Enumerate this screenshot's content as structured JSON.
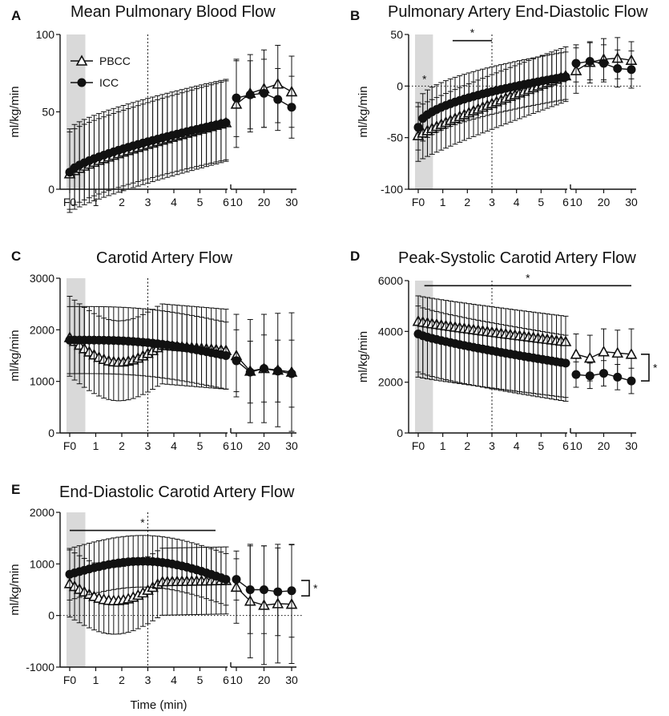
{
  "figure": {
    "x_axis_label": "Time (min)",
    "colors": {
      "ink": "#111111",
      "shade": "#d9d9d9",
      "pbcc_fill": "#ffffff",
      "icc_fill": "#111111"
    }
  },
  "chart_data": [
    {
      "id": "A",
      "type": "line",
      "title": "Mean Pulmonary Blood Flow",
      "ylabel": "ml/kg/min",
      "xlabel": "",
      "ylim": [
        0,
        100
      ],
      "yticks": [
        0,
        50,
        100
      ],
      "ytick_labels": [
        "0",
        "50",
        "100"
      ],
      "x_left_ticks": [
        "F0",
        "1",
        "2",
        "3",
        "4",
        "5",
        "6"
      ],
      "x_right_ticks": [
        "10",
        "20",
        "30"
      ],
      "shade_minutes": [
        0,
        0.6
      ],
      "dotted_line_minute": 3,
      "zero_line": false,
      "legend": {
        "position": "top-left",
        "entries": [
          "PBCC",
          "ICC"
        ]
      },
      "series": [
        {
          "name": "PBCC",
          "marker": "open-triangle",
          "left": {
            "start": 10,
            "end": 43,
            "shape": 0.8,
            "err_up": 27,
            "err_down": 25
          },
          "right": {
            "x": [
              10,
              15,
              20,
              25,
              30
            ],
            "y": [
              55,
              62,
              65,
              68,
              63
            ],
            "err": [
              28,
              25,
              25,
              25,
              23
            ]
          }
        },
        {
          "name": "ICC",
          "marker": "filled-circle",
          "left": {
            "start": 11,
            "end": 43,
            "shape": 0.7,
            "err_up": 28,
            "err_down": 24
          },
          "right": {
            "x": [
              10,
              15,
              20,
              25,
              30
            ],
            "y": [
              59,
              61,
              62,
              58,
              53
            ],
            "err": [
              25,
              22,
              22,
              20,
              20
            ]
          }
        }
      ],
      "annotations": []
    },
    {
      "id": "B",
      "type": "line",
      "title": "Pulmonary Artery End-Diastolic Flow",
      "ylabel": "ml/kg/min",
      "xlabel": "",
      "ylim": [
        -100,
        50
      ],
      "yticks": [
        -100,
        -50,
        0,
        50
      ],
      "ytick_labels": [
        "-100",
        "-50",
        "0",
        "50"
      ],
      "x_left_ticks": [
        "F0",
        "1",
        "2",
        "3",
        "4",
        "5",
        "6"
      ],
      "x_right_ticks": [
        "10",
        "20",
        "30"
      ],
      "shade_minutes": [
        0,
        0.6
      ],
      "dotted_line_minute": 3,
      "zero_line": true,
      "legend": null,
      "series": [
        {
          "name": "PBCC",
          "marker": "open-triangle",
          "left": {
            "start": -48,
            "end": 10,
            "shape": 0.9,
            "err_up": 28,
            "err_down": 25
          },
          "right": {
            "x": [
              10,
              15,
              20,
              25,
              30
            ],
            "y": [
              15,
              23,
              26,
              27,
              25
            ],
            "err": [
              22,
              20,
              20,
              20,
              18
            ]
          }
        },
        {
          "name": "ICC",
          "marker": "filled-circle",
          "left": {
            "start": -40,
            "end": 9,
            "shape": 0.5,
            "err_up": 24,
            "err_down": 22
          },
          "right": {
            "x": [
              10,
              15,
              20,
              25,
              30
            ],
            "y": [
              22,
              24,
              22,
              17,
              16
            ],
            "err": [
              18,
              18,
              18,
              18,
              18
            ]
          }
        }
      ],
      "annotations": [
        {
          "type": "star",
          "text": "*",
          "minute": 0.25,
          "y": 3
        },
        {
          "type": "bracket-h",
          "text": "*",
          "from_minute": 1.4,
          "to_minute": 3,
          "y": 44
        }
      ]
    },
    {
      "id": "C",
      "type": "line",
      "title": "Carotid Artery Flow",
      "ylabel": "ml/kg/min",
      "xlabel": "",
      "ylim": [
        0,
        3000
      ],
      "yticks": [
        0,
        1000,
        2000,
        3000
      ],
      "ytick_labels": [
        "0",
        "1000",
        "2000",
        "3000"
      ],
      "x_left_ticks": [
        "F0",
        "1",
        "2",
        "3",
        "4",
        "5",
        "6"
      ],
      "x_right_ticks": [
        "10",
        "20",
        "30"
      ],
      "shade_minutes": [
        0,
        0.6
      ],
      "dotted_line_minute": 3,
      "zero_line": false,
      "legend": null,
      "series": [
        {
          "name": "PBCC",
          "marker": "open-triangle",
          "left": {
            "start": 1850,
            "end": 1600,
            "dip": 400,
            "shape": 1.0,
            "err_up": 800,
            "err_down": 750
          },
          "right": {
            "x": [
              10,
              15,
              20,
              25,
              30
            ],
            "y": [
              1500,
              1200,
              1250,
              1220,
              1180
            ],
            "err": [
              800,
              1000,
              1050,
              1100,
              1150
            ]
          }
        },
        {
          "name": "ICC",
          "marker": "filled-circle",
          "left": {
            "start": 1800,
            "end": 1500,
            "bump": 100,
            "shape": 1.0,
            "err_up": 650,
            "err_down": 650
          },
          "right": {
            "x": [
              10,
              15,
              20,
              25,
              30
            ],
            "y": [
              1400,
              1180,
              1250,
              1200,
              1150
            ],
            "err": [
              600,
              600,
              650,
              600,
              650
            ]
          }
        }
      ],
      "annotations": []
    },
    {
      "id": "D",
      "type": "line",
      "title": "Peak-Systolic Carotid Artery Flow",
      "ylabel": "ml/kg/min",
      "xlabel": "",
      "ylim": [
        0,
        6000
      ],
      "yticks": [
        0,
        2000,
        4000,
        6000
      ],
      "ytick_labels": [
        "0",
        "2000",
        "4000",
        "6000"
      ],
      "x_left_ticks": [
        "F0",
        "1",
        "2",
        "3",
        "4",
        "5",
        "6"
      ],
      "x_right_ticks": [
        "10",
        "20",
        "30"
      ],
      "shade_minutes": [
        0,
        0.6
      ],
      "dotted_line_minute": 3,
      "zero_line": false,
      "legend": null,
      "series": [
        {
          "name": "PBCC",
          "marker": "open-triangle",
          "left": {
            "start": 4400,
            "end": 3600,
            "shape": 0.9,
            "err_up": 1000,
            "err_down": 2200
          },
          "right": {
            "x": [
              10,
              15,
              20,
              25,
              30
            ],
            "y": [
              3100,
              2950,
              3200,
              3150,
              3100
            ],
            "err": [
              800,
              900,
              900,
              900,
              1000
            ]
          }
        },
        {
          "name": "ICC",
          "marker": "filled-circle",
          "left": {
            "start": 3900,
            "end": 2750,
            "shape": 0.8,
            "err_up": 1100,
            "err_down": 1500
          },
          "right": {
            "x": [
              10,
              15,
              20,
              25,
              30
            ],
            "y": [
              2300,
              2250,
              2350,
              2200,
              2050
            ],
            "err": [
              500,
              500,
              500,
              500,
              500
            ]
          }
        }
      ],
      "annotations": [
        {
          "type": "bracket-h",
          "text": "*",
          "from_minute": 0.25,
          "to_minute": 6,
          "extends_to_end": true,
          "y": 5800
        },
        {
          "type": "bracket-v",
          "text": "*",
          "y_from": 3100,
          "y_to": 2050
        }
      ]
    },
    {
      "id": "E",
      "type": "line",
      "title": "End-Diastolic Carotid Artery Flow",
      "ylabel": "ml/kg/min",
      "xlabel": "Time (min)",
      "ylim": [
        -1000,
        2000
      ],
      "yticks": [
        -1000,
        0,
        1000,
        2000
      ],
      "ytick_labels": [
        "-1000",
        "0",
        "1000",
        "2000"
      ],
      "x_left_ticks": [
        "F0",
        "1",
        "2",
        "3",
        "4",
        "5",
        "6"
      ],
      "x_right_ticks": [
        "10",
        "20",
        "30"
      ],
      "shade_minutes": [
        0,
        0.6
      ],
      "dotted_line_minute": 3,
      "zero_line": true,
      "legend": null,
      "series": [
        {
          "name": "PBCC",
          "marker": "open-triangle",
          "left": {
            "start": 620,
            "end": 680,
            "dip": 350,
            "shape": 1.0,
            "err_up": 650,
            "err_down": 650
          },
          "right": {
            "x": [
              10,
              15,
              20,
              25,
              30
            ],
            "y": [
              550,
              280,
              200,
              230,
              220
            ],
            "err": [
              700,
              1100,
              1150,
              1150,
              1150
            ]
          }
        },
        {
          "name": "ICC",
          "marker": "filled-circle",
          "left": {
            "start": 800,
            "end": 700,
            "bump": 300,
            "shape": 1.0,
            "err_up": 500,
            "err_down": 500
          },
          "right": {
            "x": [
              10,
              15,
              20,
              25,
              30
            ],
            "y": [
              700,
              500,
              500,
              460,
              480
            ],
            "err": [
              400,
              850,
              850,
              850,
              900
            ]
          }
        }
      ],
      "annotations": [
        {
          "type": "bracket-h",
          "text": "*",
          "from_minute": 0,
          "to_minute": 5.6,
          "y": 1650
        },
        {
          "type": "bracket-v",
          "text": "*",
          "y_from": 680,
          "y_to": 380
        }
      ]
    }
  ]
}
